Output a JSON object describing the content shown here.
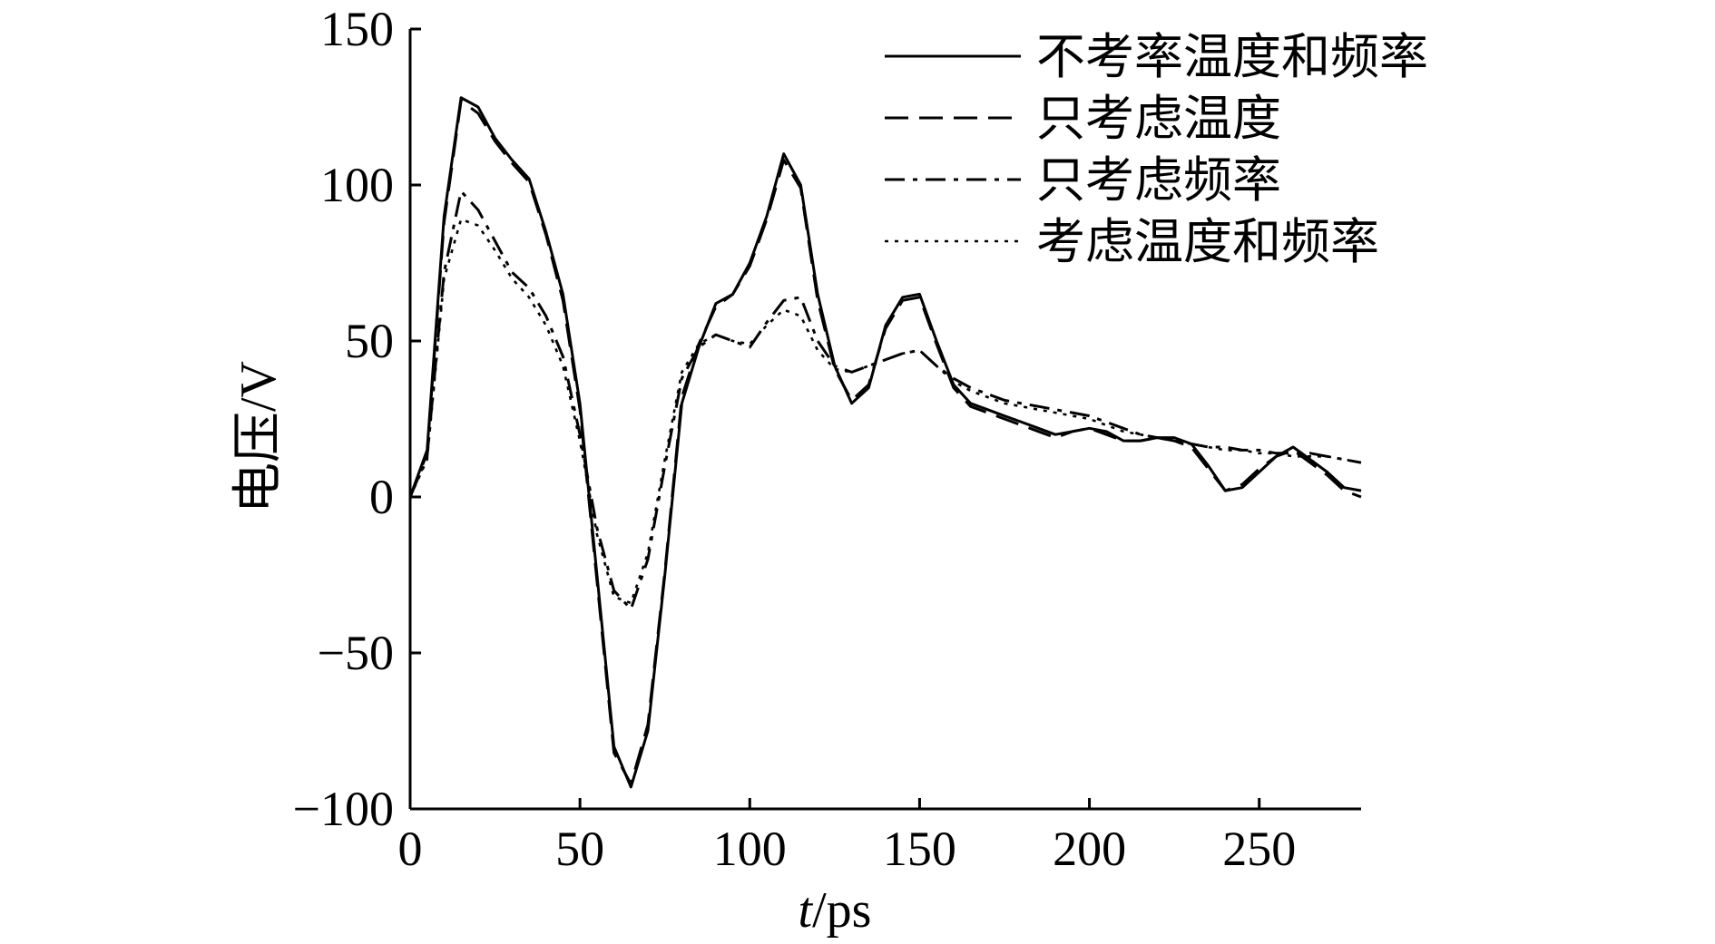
{
  "chart_data": {
    "type": "line",
    "title": "",
    "xlabel_italic": "t",
    "xlabel_rest": "/ps",
    "ylabel": "电压/V",
    "xlim": [
      0,
      280
    ],
    "ylim": [
      -100,
      150
    ],
    "xticks": [
      0,
      50,
      100,
      150,
      200,
      250
    ],
    "yticks": [
      -100,
      -50,
      0,
      50,
      100,
      150
    ],
    "xtick_labels": [
      "0",
      "50",
      "100",
      "150",
      "200",
      "250"
    ],
    "ytick_labels": [
      "−100",
      "−50",
      "0",
      "50",
      "100",
      "150"
    ],
    "legend_position": "top-right",
    "grid": false,
    "color": "#000000",
    "series": [
      {
        "name": "不考率温度和频率",
        "style": "solid",
        "x": [
          0,
          5,
          10,
          15,
          20,
          25,
          30,
          35,
          40,
          45,
          50,
          55,
          60,
          65,
          70,
          75,
          80,
          85,
          90,
          95,
          100,
          105,
          110,
          115,
          120,
          125,
          130,
          135,
          140,
          145,
          150,
          155,
          160,
          165,
          170,
          175,
          180,
          185,
          190,
          195,
          200,
          205,
          210,
          215,
          220,
          225,
          230,
          235,
          240,
          245,
          250,
          255,
          260,
          265,
          270,
          275,
          280
        ],
        "y": [
          0,
          15,
          90,
          128,
          125,
          115,
          108,
          102,
          85,
          65,
          30,
          -25,
          -80,
          -93,
          -75,
          -25,
          30,
          48,
          62,
          65,
          75,
          90,
          110,
          100,
          65,
          42,
          30,
          35,
          55,
          64,
          65,
          50,
          36,
          30,
          28,
          26,
          24,
          22,
          20,
          21,
          22,
          21,
          18,
          18,
          19,
          19,
          17,
          10,
          2,
          3,
          8,
          13,
          16,
          12,
          8,
          3,
          2
        ]
      },
      {
        "name": "只考虑温度",
        "style": "dashed",
        "x": [
          0,
          5,
          10,
          15,
          20,
          25,
          30,
          35,
          40,
          45,
          50,
          55,
          60,
          65,
          70,
          75,
          80,
          85,
          90,
          95,
          100,
          105,
          110,
          115,
          120,
          125,
          130,
          135,
          140,
          145,
          150,
          155,
          160,
          165,
          170,
          175,
          180,
          185,
          190,
          195,
          200,
          205,
          210,
          215,
          220,
          225,
          230,
          235,
          240,
          245,
          250,
          255,
          260,
          265,
          270,
          275,
          280
        ],
        "y": [
          0,
          14,
          88,
          127,
          123,
          114,
          107,
          101,
          84,
          63,
          28,
          -27,
          -82,
          -92,
          -73,
          -24,
          32,
          49,
          61,
          65,
          74,
          89,
          108,
          99,
          63,
          41,
          31,
          36,
          54,
          63,
          64,
          49,
          35,
          29,
          27,
          25,
          23,
          21,
          19,
          21,
          22,
          20,
          18,
          18,
          19,
          18,
          16,
          9,
          2,
          4,
          9,
          13,
          15,
          11,
          7,
          2,
          0
        ]
      },
      {
        "name": "只考虑频率",
        "style": "dashdot",
        "x": [
          0,
          5,
          10,
          15,
          20,
          25,
          30,
          35,
          40,
          45,
          50,
          55,
          60,
          65,
          70,
          75,
          80,
          85,
          90,
          95,
          100,
          105,
          110,
          115,
          120,
          125,
          130,
          135,
          140,
          145,
          150,
          155,
          160,
          165,
          170,
          175,
          180,
          185,
          190,
          195,
          200,
          205,
          210,
          215,
          220,
          225,
          230,
          235,
          240,
          245,
          250,
          255,
          260,
          265,
          270,
          275,
          280
        ],
        "y": [
          0,
          13,
          72,
          98,
          92,
          82,
          72,
          67,
          58,
          45,
          20,
          -10,
          -30,
          -36,
          -20,
          10,
          38,
          48,
          52,
          50,
          48,
          56,
          63,
          64,
          50,
          42,
          40,
          42,
          44,
          46,
          47,
          42,
          38,
          35,
          33,
          31,
          30,
          29,
          28,
          27,
          26,
          24,
          22,
          20,
          19,
          18,
          17,
          16,
          16,
          15,
          15,
          14,
          14,
          14,
          13,
          12,
          11
        ]
      },
      {
        "name": "考虑温度和频率",
        "style": "dotted",
        "x": [
          0,
          5,
          10,
          15,
          20,
          25,
          30,
          35,
          40,
          45,
          50,
          55,
          60,
          65,
          70,
          75,
          80,
          85,
          90,
          95,
          100,
          105,
          110,
          115,
          120,
          125,
          130,
          135,
          140,
          145,
          150,
          155,
          160,
          165,
          170,
          175,
          180,
          185,
          190,
          195,
          200,
          205,
          210,
          215,
          220,
          225,
          230,
          235,
          240,
          245,
          250,
          255,
          260,
          265,
          270,
          275,
          280
        ],
        "y": [
          0,
          12,
          70,
          89,
          87,
          79,
          70,
          64,
          55,
          42,
          18,
          -12,
          -32,
          -34,
          -18,
          12,
          40,
          49,
          52,
          50,
          49,
          55,
          60,
          58,
          47,
          41,
          40,
          42,
          44,
          46,
          47,
          42,
          37,
          34,
          32,
          30,
          29,
          28,
          27,
          26,
          25,
          23,
          21,
          20,
          19,
          18,
          17,
          16,
          15,
          15,
          14,
          14,
          13,
          13,
          13,
          12,
          11
        ]
      }
    ]
  }
}
